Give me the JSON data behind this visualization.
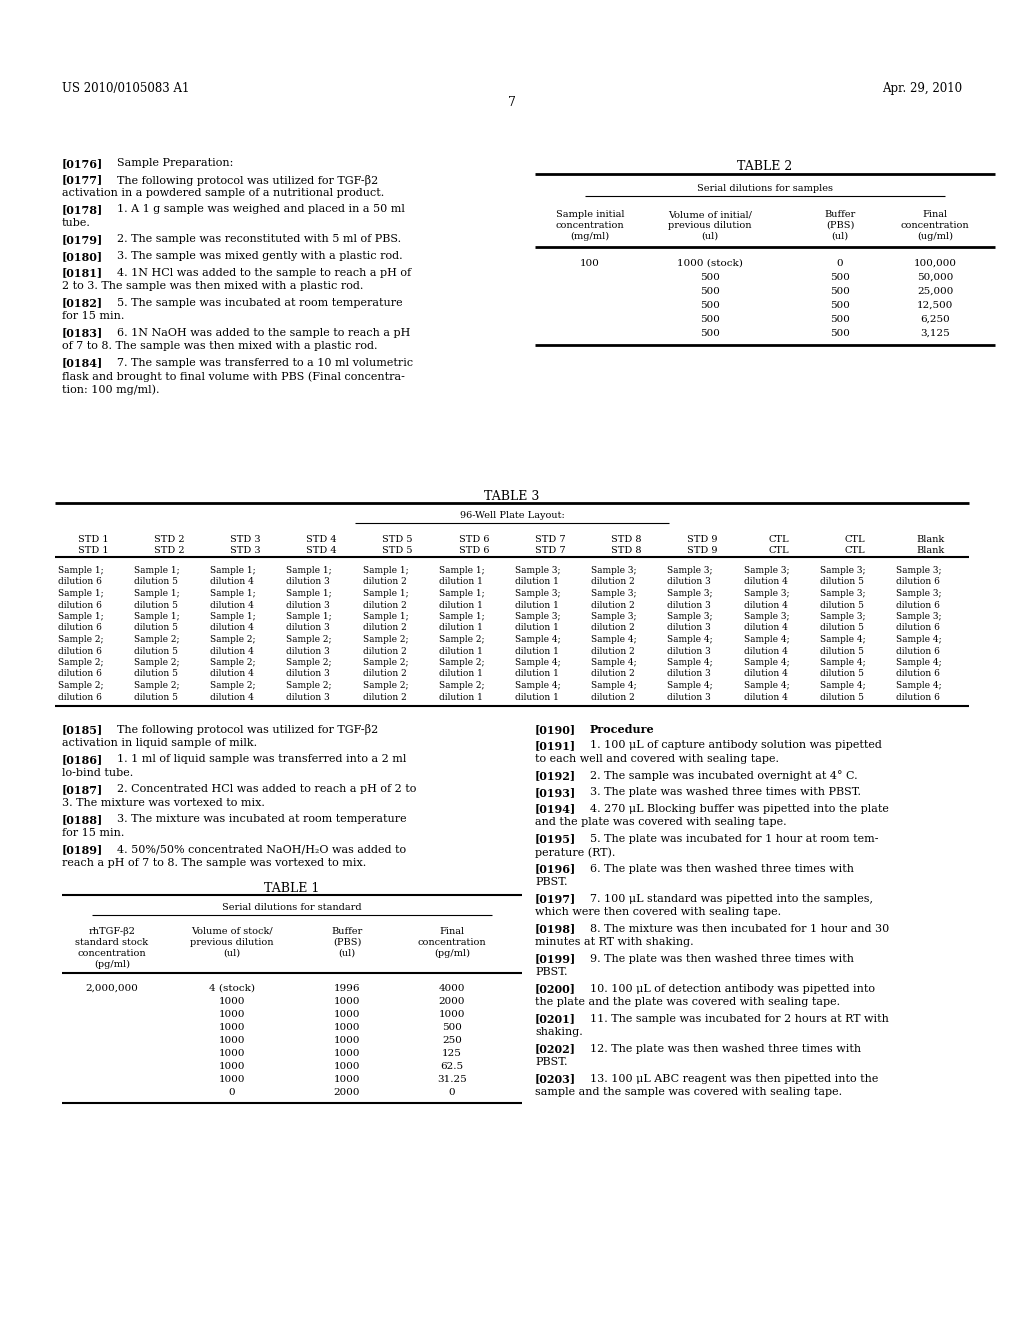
{
  "bg_color": "#ffffff",
  "header_left": "US 2010/0105083 A1",
  "header_right": "Apr. 29, 2010",
  "page_number": "7",
  "left_col_paragraphs": [
    {
      "tag": "[0176]",
      "text": "Sample Preparation:",
      "bold_tag": true,
      "extra_bold_text": true
    },
    {
      "tag": "[0177]",
      "text": "The following protocol was utilized for TGF-β2\nactivation in a powdered sample of a nutritional product.",
      "bold_tag": true
    },
    {
      "tag": "[0178]",
      "text": "1. A 1 g sample was weighed and placed in a 50 ml\ntube.",
      "bold_tag": true
    },
    {
      "tag": "[0179]",
      "text": "2. The sample was reconstituted with 5 ml of PBS.",
      "bold_tag": true
    },
    {
      "tag": "[0180]",
      "text": "3. The sample was mixed gently with a plastic rod.",
      "bold_tag": true
    },
    {
      "tag": "[0181]",
      "text": "4. 1N HCl was added to the sample to reach a pH of\n2 to 3. The sample was then mixed with a plastic rod.",
      "bold_tag": true
    },
    {
      "tag": "[0182]",
      "text": "5. The sample was incubated at room temperature\nfor 15 min.",
      "bold_tag": true
    },
    {
      "tag": "[0183]",
      "text": "6. 1N NaOH was added to the sample to reach a pH\nof 7 to 8. The sample was then mixed with a plastic rod.",
      "bold_tag": true
    },
    {
      "tag": "[0184]",
      "text": "7. The sample was transferred to a 10 ml volumetric\nflask and brought to final volume with PBS (Final concentra-\ntion: 100 mg/ml).",
      "bold_tag": true
    }
  ],
  "table2_title": "TABLE 2",
  "table2_subtitle": "Serial dilutions for samples",
  "table2_col1_header": [
    "Sample initial",
    "concentration",
    "(mg/ml)"
  ],
  "table2_col2_header": [
    "Volume of initial/",
    "previous dilution",
    "(ul)"
  ],
  "table2_col3_header": [
    "Buffer",
    "(PBS)",
    "(ul)"
  ],
  "table2_col4_header": [
    "Final",
    "concentration",
    "(ug/ml)"
  ],
  "table2_rows": [
    [
      "100",
      "1000 (stock)",
      "0",
      "100,000"
    ],
    [
      "",
      "500",
      "500",
      "50,000"
    ],
    [
      "",
      "500",
      "500",
      "25,000"
    ],
    [
      "",
      "500",
      "500",
      "12,500"
    ],
    [
      "",
      "500",
      "500",
      "6,250"
    ],
    [
      "",
      "500",
      "500",
      "3,125"
    ]
  ],
  "table3_title": "TABLE 3",
  "table3_subtitle": "96-Well Plate Layout:",
  "table3_col_headers_row1": [
    "STD 1",
    "STD 2",
    "STD 3",
    "STD 4",
    "STD 5",
    "STD 6",
    "STD 7",
    "STD 8",
    "STD 9",
    "CTL",
    "CTL",
    "Blank"
  ],
  "table3_col_headers_row2": [
    "STD 1",
    "STD 2",
    "STD 3",
    "STD 4",
    "STD 5",
    "STD 6",
    "STD 7",
    "STD 8",
    "STD 9",
    "CTL",
    "CTL",
    "Blank"
  ],
  "table3_rows": [
    [
      "Sample 1;",
      "Sample 1;",
      "Sample 1;",
      "Sample 1;",
      "Sample 1;",
      "Sample 1;",
      "Sample 3;",
      "Sample 3;",
      "Sample 3;",
      "Sample 3;",
      "Sample 3;",
      "Sample 3;"
    ],
    [
      "dilution 6",
      "dilution 5",
      "dilution 4",
      "dilution 3",
      "dilution 2",
      "dilution 1",
      "dilution 1",
      "dilution 2",
      "dilution 3",
      "dilution 4",
      "dilution 5",
      "dilution 6"
    ],
    [
      "Sample 1;",
      "Sample 1;",
      "Sample 1;",
      "Sample 1;",
      "Sample 1;",
      "Sample 1;",
      "Sample 3;",
      "Sample 3;",
      "Sample 3;",
      "Sample 3;",
      "Sample 3;",
      "Sample 3;"
    ],
    [
      "dilution 6",
      "dilution 5",
      "dilution 4",
      "dilution 3",
      "dilution 2",
      "dilution 1",
      "dilution 1",
      "dilution 2",
      "dilution 3",
      "dilution 4",
      "dilution 5",
      "dilution 6"
    ],
    [
      "Sample 1;",
      "Sample 1;",
      "Sample 1;",
      "Sample 1;",
      "Sample 1;",
      "Sample 1;",
      "Sample 3;",
      "Sample 3;",
      "Sample 3;",
      "Sample 3;",
      "Sample 3;",
      "Sample 3;"
    ],
    [
      "dilution 6",
      "dilution 5",
      "dilution 4",
      "dilution 3",
      "dilution 2",
      "dilution 1",
      "dilution 1",
      "dilution 2",
      "dilution 3",
      "dilution 4",
      "dilution 5",
      "dilution 6"
    ],
    [
      "Sample 2;",
      "Sample 2;",
      "Sample 2;",
      "Sample 2;",
      "Sample 2;",
      "Sample 2;",
      "Sample 4;",
      "Sample 4;",
      "Sample 4;",
      "Sample 4;",
      "Sample 4;",
      "Sample 4;"
    ],
    [
      "dilution 6",
      "dilution 5",
      "dilution 4",
      "dilution 3",
      "dilution 2",
      "dilution 1",
      "dilution 1",
      "dilution 2",
      "dilution 3",
      "dilution 4",
      "dilution 5",
      "dilution 6"
    ],
    [
      "Sample 2;",
      "Sample 2;",
      "Sample 2;",
      "Sample 2;",
      "Sample 2;",
      "Sample 2;",
      "Sample 4;",
      "Sample 4;",
      "Sample 4;",
      "Sample 4;",
      "Sample 4;",
      "Sample 4;"
    ],
    [
      "dilution 6",
      "dilution 5",
      "dilution 4",
      "dilution 3",
      "dilution 2",
      "dilution 1",
      "dilution 1",
      "dilution 2",
      "dilution 3",
      "dilution 4",
      "dilution 5",
      "dilution 6"
    ],
    [
      "Sample 2;",
      "Sample 2;",
      "Sample 2;",
      "Sample 2;",
      "Sample 2;",
      "Sample 2;",
      "Sample 4;",
      "Sample 4;",
      "Sample 4;",
      "Sample 4;",
      "Sample 4;",
      "Sample 4;"
    ],
    [
      "dilution 6",
      "dilution 5",
      "dilution 4",
      "dilution 3",
      "dilution 2",
      "dilution 1",
      "dilution 1",
      "dilution 2",
      "dilution 3",
      "dilution 4",
      "dilution 5",
      "dilution 6"
    ]
  ],
  "bottom_left_paragraphs": [
    {
      "tag": "[0185]",
      "text": "The following protocol was utilized for TGF-β2\nactivation in liquid sample of milk.",
      "bold_tag": true
    },
    {
      "tag": "[0186]",
      "text": "1. 1 ml of liquid sample was transferred into a 2 ml\nlo-bind tube.",
      "bold_tag": true
    },
    {
      "tag": "[0187]",
      "text": "2. Concentrated HCl was added to reach a pH of 2 to\n3. The mixture was vortexed to mix.",
      "bold_tag": true
    },
    {
      "tag": "[0188]",
      "text": "3. The mixture was incubated at room temperature\nfor 15 min.",
      "bold_tag": true
    },
    {
      "tag": "[0189]",
      "text": "4. 50%/50% concentrated NaOH/H₂O was added to\nreach a pH of 7 to 8. The sample was vortexed to mix.",
      "bold_tag": true
    }
  ],
  "table1_title": "TABLE 1",
  "table1_subtitle": "Serial dilutions for standard",
  "table1_col1_header": [
    "rhTGF-β2",
    "standard stock",
    "concentration",
    "(pg/ml)"
  ],
  "table1_col2_header": [
    "Volume of stock/",
    "previous dilution",
    "(ul)"
  ],
  "table1_col3_header": [
    "Buffer",
    "(PBS)",
    "(ul)"
  ],
  "table1_col4_header": [
    "Final",
    "concentration",
    "(pg/ml)"
  ],
  "table1_rows": [
    [
      "2,000,000",
      "4 (stock)",
      "1996",
      "4000"
    ],
    [
      "",
      "1000",
      "1000",
      "2000"
    ],
    [
      "",
      "1000",
      "1000",
      "1000"
    ],
    [
      "",
      "1000",
      "1000",
      "500"
    ],
    [
      "",
      "1000",
      "1000",
      "250"
    ],
    [
      "",
      "1000",
      "1000",
      "125"
    ],
    [
      "",
      "1000",
      "1000",
      "62.5"
    ],
    [
      "",
      "1000",
      "1000",
      "31.25"
    ],
    [
      "",
      "0",
      "2000",
      "0"
    ]
  ],
  "bottom_right_paragraphs": [
    {
      "tag": "[0190]",
      "text": "Procedure",
      "bold_tag": true,
      "bold_text": true
    },
    {
      "tag": "[0191]",
      "text": "1. 100 μL of capture antibody solution was pipetted\nto each well and covered with sealing tape.",
      "bold_tag": true
    },
    {
      "tag": "[0192]",
      "text": "2. The sample was incubated overnight at 4° C.",
      "bold_tag": true
    },
    {
      "tag": "[0193]",
      "text": "3. The plate was washed three times with PBST.",
      "bold_tag": true
    },
    {
      "tag": "[0194]",
      "text": "4. 270 μL Blocking buffer was pipetted into the plate\nand the plate was covered with sealing tape.",
      "bold_tag": true
    },
    {
      "tag": "[0195]",
      "text": "5. The plate was incubated for 1 hour at room tem-\nperature (RT).",
      "bold_tag": true
    },
    {
      "tag": "[0196]",
      "text": "6. The plate was then washed three times with\nPBST.",
      "bold_tag": true
    },
    {
      "tag": "[0197]",
      "text": "7. 100 μL standard was pipetted into the samples,\nwhich were then covered with sealing tape.",
      "bold_tag": true
    },
    {
      "tag": "[0198]",
      "text": "8. The mixture was then incubated for 1 hour and 30\nminutes at RT with shaking.",
      "bold_tag": true
    },
    {
      "tag": "[0199]",
      "text": "9. The plate was then washed three times with\nPBST.",
      "bold_tag": true
    },
    {
      "tag": "[0200]",
      "text": "10. 100 μL of detection antibody was pipetted into\nthe plate and the plate was covered with sealing tape.",
      "bold_tag": true
    },
    {
      "tag": "[0201]",
      "text": "11. The sample was incubated for 2 hours at RT with\nshaking.",
      "bold_tag": true
    },
    {
      "tag": "[0202]",
      "text": "12. The plate was then washed three times with\nPBST.",
      "bold_tag": true
    },
    {
      "tag": "[0203]",
      "text": "13. 100 μL ABC reagent was then pipetted into the\nsample and the sample was covered with sealing tape.",
      "bold_tag": true
    }
  ]
}
